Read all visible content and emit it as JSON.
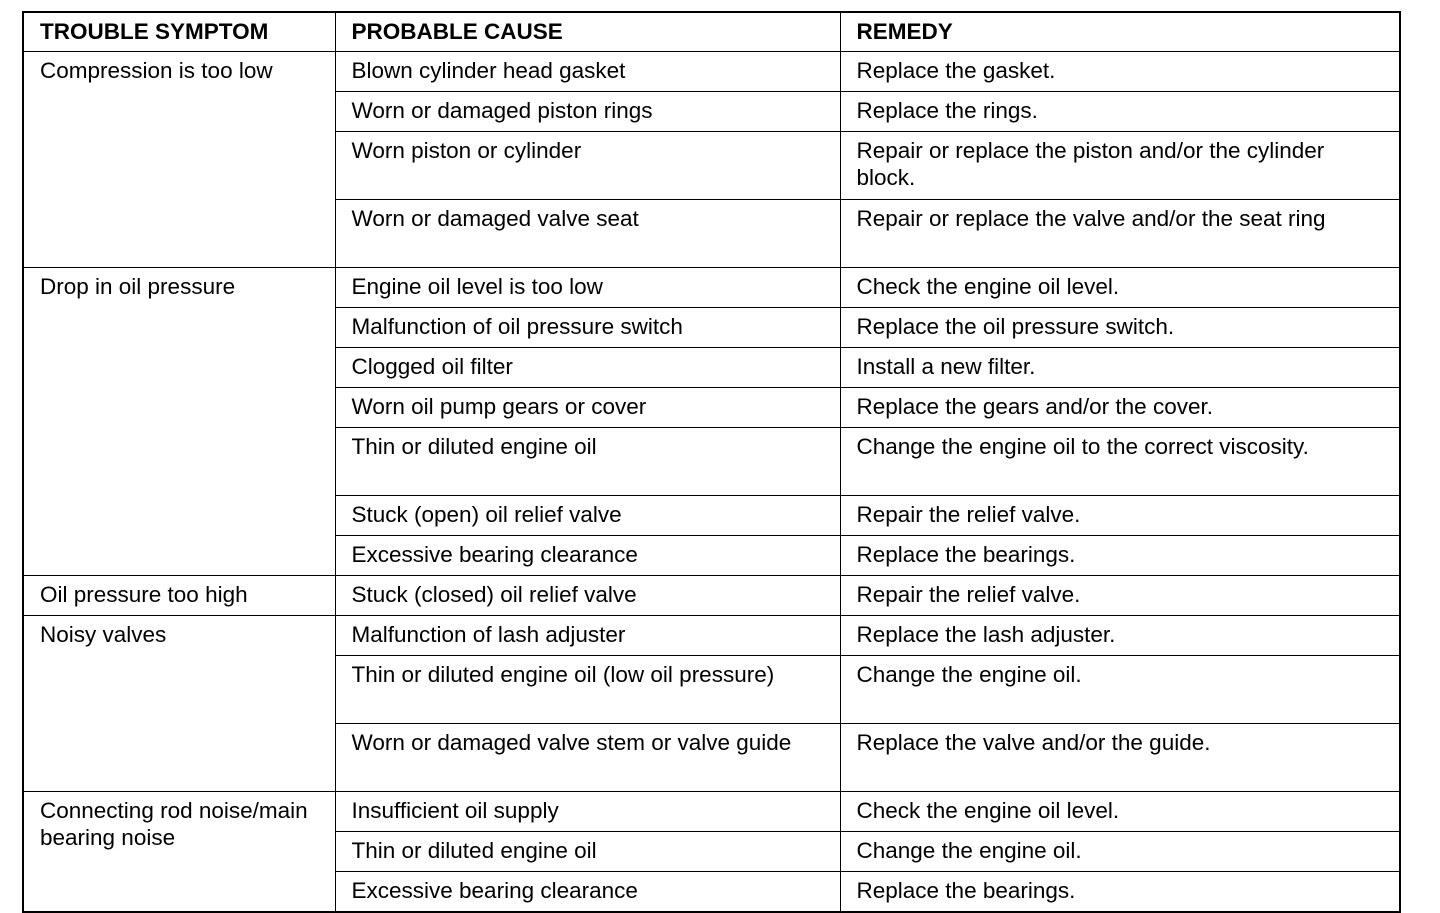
{
  "headers": [
    "TROUBLE SYMPTOM",
    "PROBABLE CAUSE",
    "REMEDY"
  ],
  "groups": [
    {
      "symptom": "Compression is too low",
      "rows": [
        {
          "cause": "Blown cylinder head gasket",
          "remedy": "Replace the gasket."
        },
        {
          "cause": "Worn or damaged piston rings",
          "remedy": "Replace the rings."
        },
        {
          "cause": "Worn piston or cylinder",
          "remedy": "Repair or replace the piston and/or the cylinder block."
        },
        {
          "cause": "Worn or damaged valve seat",
          "remedy": "Repair or replace the valve and/or the seat ring"
        }
      ]
    },
    {
      "symptom": "Drop in oil pressure",
      "rows": [
        {
          "cause": "Engine oil level is too low",
          "remedy": "Check the engine oil level."
        },
        {
          "cause": "Malfunction of oil pressure switch",
          "remedy": "Replace the oil pressure switch."
        },
        {
          "cause": "Clogged oil filter",
          "remedy": "Install a new filter."
        },
        {
          "cause": "Worn oil pump gears or cover",
          "remedy": "Replace the gears and/or the cover."
        },
        {
          "cause": "Thin or diluted engine oil",
          "remedy": "Change the engine oil to the correct viscosity."
        },
        {
          "cause": "Stuck (open) oil relief valve",
          "remedy": "Repair the relief valve."
        },
        {
          "cause": "Excessive bearing clearance",
          "remedy": "Replace the bearings."
        }
      ]
    },
    {
      "symptom": "Oil pressure too high",
      "rows": [
        {
          "cause": "Stuck (closed) oil relief valve",
          "remedy": "Repair the relief valve."
        }
      ]
    },
    {
      "symptom": "Noisy valves",
      "rows": [
        {
          "cause": "Malfunction of lash adjuster",
          "remedy": "Replace the lash adjuster."
        },
        {
          "cause": "Thin or diluted engine oil (low oil pressure)",
          "remedy": "Change the engine oil."
        },
        {
          "cause": "Worn or damaged valve stem or valve guide",
          "remedy": "Replace the valve and/or the guide."
        }
      ]
    },
    {
      "symptom": "Connecting rod noise/main bearing noise",
      "rows": [
        {
          "cause": "Insufficient oil supply",
          "remedy": "Check the engine oil level."
        },
        {
          "cause": "Thin or diluted engine oil",
          "remedy": "Change the engine oil."
        },
        {
          "cause": "Excessive bearing clearance",
          "remedy": "Replace the bearings."
        }
      ]
    }
  ]
}
